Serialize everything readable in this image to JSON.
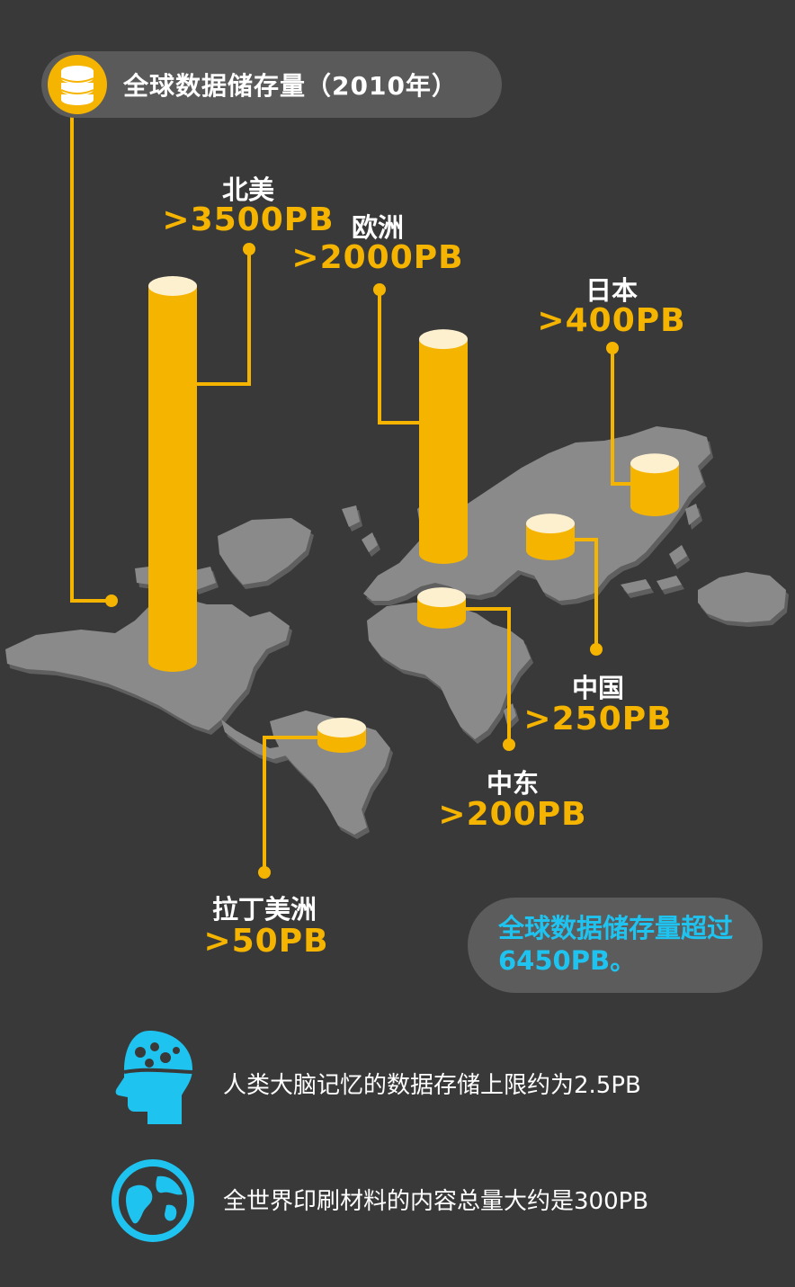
{
  "title": "全球数据储存量（2010年）",
  "colors": {
    "accent": "#f5b400",
    "cyan": "#1fc3f0",
    "map": "#8a8a8a",
    "background": "#393939"
  },
  "chart_data": {
    "type": "bar",
    "unit": "PB",
    "categories": [
      "北美",
      "欧洲",
      "日本",
      "中国",
      "中东",
      "拉丁美洲"
    ],
    "values": [
      3500,
      2000,
      400,
      250,
      200,
      50
    ],
    "value_labels": [
      ">3500PB",
      ">2000PB",
      ">400PB",
      ">250PB",
      ">200PB",
      ">50PB"
    ]
  },
  "summary": "全球数据储存量超过6450PB。",
  "facts": [
    {
      "text": "人类大脑记忆的数据存储上限约为2.5PB",
      "icon": "brain-head-icon"
    },
    {
      "text": "全世界印刷材料的内容总量大约是300PB",
      "icon": "globe-icon"
    }
  ]
}
